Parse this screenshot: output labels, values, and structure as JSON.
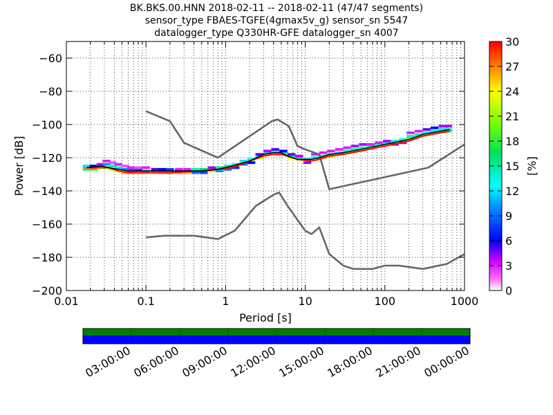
{
  "title_lines": [
    "BK.BKS.00.HNN   2018-02-11 -- 2018-02-11  (47/47 segments)",
    "sensor_type FBAES-TGFE(4gmax5v_g) sensor_sn 5547",
    "datalogger_type Q330HR-GFE datalogger_sn 4007"
  ],
  "colors": {
    "model_curve": "#666666",
    "mean_curve": "#000000",
    "mode_curve": "#ff0000",
    "bar_top": "#008000",
    "bar_bottom": "#0000ff"
  },
  "chart_data": [
    {
      "type": "heatmap",
      "xlabel": "Period [s]",
      "ylabel": "Power [dB]",
      "x_scale": "log",
      "xlim": [
        0.01,
        1000
      ],
      "ylim": [
        -200,
        -50
      ],
      "x_ticks": [
        0.01,
        0.1,
        1,
        10,
        100,
        1000
      ],
      "x_tick_labels": [
        "0.01",
        "0.1",
        "1",
        "10",
        "100",
        "1000"
      ],
      "y_ticks": [
        -200,
        -180,
        -160,
        -140,
        -120,
        -100,
        -80,
        -60
      ],
      "y_tick_labels": [
        "−200",
        "−180",
        "−160",
        "−140",
        "−120",
        "−100",
        "−80",
        "−60"
      ],
      "grid": "dotted",
      "colorbar": {
        "label": "[%]",
        "range": [
          0,
          30
        ],
        "ticks": [
          0,
          3,
          6,
          9,
          12,
          15,
          18,
          21,
          24,
          27,
          30
        ],
        "tick_labels": [
          "0",
          "3",
          "6",
          "9",
          "12",
          "15",
          "18",
          "21",
          "24",
          "27",
          "30"
        ]
      },
      "series": [
        {
          "style": "model-upper",
          "points": [
            [
              0.1,
              -92
            ],
            [
              0.2,
              -98
            ],
            [
              0.3,
              -111
            ],
            [
              0.8,
              -120
            ],
            [
              3.8,
              -98
            ],
            [
              4.5,
              -97
            ],
            [
              6.2,
              -101
            ],
            [
              8,
              -113
            ],
            [
              10,
              -115
            ],
            [
              15,
              -118
            ],
            [
              20,
              -139
            ],
            [
              350,
              -126
            ],
            [
              1000,
              -112
            ]
          ]
        },
        {
          "style": "model-lower",
          "points": [
            [
              0.1,
              -168
            ],
            [
              0.17,
              -167
            ],
            [
              0.4,
              -167
            ],
            [
              0.8,
              -169
            ],
            [
              1.3,
              -164
            ],
            [
              2.4,
              -149
            ],
            [
              4.1,
              -142
            ],
            [
              4.7,
              -141
            ],
            [
              6,
              -149
            ],
            [
              10,
              -164
            ],
            [
              12,
              -166
            ],
            [
              15,
              -162
            ],
            [
              20,
              -178
            ],
            [
              30,
              -185
            ],
            [
              40,
              -187
            ],
            [
              70,
              -187
            ],
            [
              100,
              -185
            ],
            [
              150,
              -185
            ],
            [
              300,
              -187
            ],
            [
              600,
              -184
            ],
            [
              1000,
              -178
            ]
          ]
        },
        {
          "style": "mode",
          "points": [
            [
              0.018,
              -126
            ],
            [
              0.028,
              -126
            ],
            [
              0.034,
              -126
            ],
            [
              0.045,
              -128
            ],
            [
              0.06,
              -129
            ],
            [
              0.1,
              -129
            ],
            [
              0.2,
              -129
            ],
            [
              0.5,
              -128
            ],
            [
              0.8,
              -127
            ],
            [
              1.2,
              -126
            ],
            [
              2,
              -122
            ],
            [
              3,
              -119
            ],
            [
              4,
              -118
            ],
            [
              5,
              -118
            ],
            [
              6,
              -119
            ],
            [
              8,
              -121
            ],
            [
              12,
              -122
            ],
            [
              15,
              -121
            ],
            [
              20,
              -119
            ],
            [
              30,
              -118
            ],
            [
              50,
              -116
            ],
            [
              100,
              -113
            ],
            [
              200,
              -110
            ],
            [
              300,
              -107
            ],
            [
              500,
              -105
            ],
            [
              650,
              -104
            ]
          ]
        },
        {
          "style": "mean",
          "points": [
            [
              0.018,
              -126
            ],
            [
              0.028,
              -125
            ],
            [
              0.034,
              -126
            ],
            [
              0.045,
              -127
            ],
            [
              0.06,
              -128
            ],
            [
              0.1,
              -128
            ],
            [
              0.2,
              -128
            ],
            [
              0.5,
              -128
            ],
            [
              0.8,
              -127
            ],
            [
              1.2,
              -125
            ],
            [
              2,
              -122
            ],
            [
              3,
              -118
            ],
            [
              4,
              -117
            ],
            [
              5,
              -117
            ],
            [
              6,
              -119
            ],
            [
              8,
              -121
            ],
            [
              12,
              -121
            ],
            [
              15,
              -120
            ],
            [
              20,
              -118
            ],
            [
              30,
              -117
            ],
            [
              50,
              -115
            ],
            [
              100,
              -112
            ],
            [
              200,
              -109
            ],
            [
              300,
              -106
            ],
            [
              500,
              -104
            ],
            [
              650,
              -103
            ]
          ]
        }
      ],
      "density_cells": [
        [
          0.018,
          -127,
          15
        ],
        [
          0.018,
          -126,
          27
        ],
        [
          0.018,
          -125,
          12
        ],
        [
          0.022,
          -127,
          18
        ],
        [
          0.022,
          -126,
          28
        ],
        [
          0.022,
          -125,
          6
        ],
        [
          0.027,
          -126,
          25
        ],
        [
          0.027,
          -125,
          12
        ],
        [
          0.027,
          -124,
          4
        ],
        [
          0.032,
          -126,
          20
        ],
        [
          0.032,
          -124,
          10
        ],
        [
          0.032,
          -122,
          3
        ],
        [
          0.038,
          -127,
          22
        ],
        [
          0.038,
          -125,
          14
        ],
        [
          0.038,
          -123,
          2
        ],
        [
          0.045,
          -128,
          24
        ],
        [
          0.045,
          -126,
          12
        ],
        [
          0.045,
          -124,
          3
        ],
        [
          0.055,
          -129,
          26
        ],
        [
          0.055,
          -127,
          10
        ],
        [
          0.055,
          -125,
          2
        ],
        [
          0.065,
          -129,
          27
        ],
        [
          0.065,
          -127,
          9
        ],
        [
          0.065,
          -126,
          3
        ],
        [
          0.08,
          -129,
          26
        ],
        [
          0.08,
          -127,
          8
        ],
        [
          0.08,
          -126,
          2
        ],
        [
          0.1,
          -129,
          27
        ],
        [
          0.1,
          -128,
          12
        ],
        [
          0.1,
          -126,
          3
        ],
        [
          0.13,
          -129,
          26
        ],
        [
          0.13,
          -128,
          13
        ],
        [
          0.13,
          -127,
          5
        ],
        [
          0.16,
          -129,
          27
        ],
        [
          0.16,
          -128,
          14
        ],
        [
          0.16,
          -127,
          6
        ],
        [
          0.2,
          -129,
          28
        ],
        [
          0.2,
          -128,
          18
        ],
        [
          0.2,
          -127,
          8
        ],
        [
          0.26,
          -129,
          27
        ],
        [
          0.26,
          -128,
          17
        ],
        [
          0.26,
          -127,
          3
        ],
        [
          0.33,
          -129,
          26
        ],
        [
          0.33,
          -128,
          20
        ],
        [
          0.33,
          -127,
          3
        ],
        [
          0.42,
          -128,
          27
        ],
        [
          0.42,
          -127,
          14
        ],
        [
          0.42,
          -129,
          9
        ],
        [
          0.53,
          -128,
          26
        ],
        [
          0.53,
          -127,
          16
        ],
        [
          0.53,
          -129,
          8
        ],
        [
          0.67,
          -128,
          25
        ],
        [
          0.67,
          -127,
          18
        ],
        [
          0.67,
          -126,
          4
        ],
        [
          0.84,
          -127,
          26
        ],
        [
          0.84,
          -126,
          15
        ],
        [
          0.84,
          -128,
          10
        ],
        [
          1.06,
          -126,
          26
        ],
        [
          1.06,
          -125,
          14
        ],
        [
          1.06,
          -127,
          9
        ],
        [
          1.33,
          -125,
          25
        ],
        [
          1.33,
          -124,
          13
        ],
        [
          1.33,
          -126,
          7
        ],
        [
          1.68,
          -123,
          24
        ],
        [
          1.68,
          -122,
          12
        ],
        [
          1.68,
          -124,
          9
        ],
        [
          2.1,
          -122,
          24
        ],
        [
          2.1,
          -121,
          13
        ],
        [
          2.1,
          -123,
          6
        ],
        [
          2.66,
          -120,
          22
        ],
        [
          2.66,
          -119,
          12
        ],
        [
          2.66,
          -118,
          5
        ],
        [
          3.35,
          -118,
          22
        ],
        [
          3.35,
          -117,
          14
        ],
        [
          3.35,
          -116,
          4
        ],
        [
          4.2,
          -118,
          22
        ],
        [
          4.2,
          -116,
          12
        ],
        [
          4.2,
          -115,
          5
        ],
        [
          5.3,
          -118,
          22
        ],
        [
          5.3,
          -117,
          14
        ],
        [
          5.3,
          -116,
          6
        ],
        [
          6.7,
          -120,
          23
        ],
        [
          6.7,
          -119,
          14
        ],
        [
          6.7,
          -118,
          5
        ],
        [
          8.4,
          -121,
          24
        ],
        [
          8.4,
          -120,
          14
        ],
        [
          8.4,
          -119,
          4
        ],
        [
          10.6,
          -122,
          25
        ],
        [
          10.6,
          -121,
          13
        ],
        [
          10.6,
          -123,
          4
        ],
        [
          13.3,
          -121,
          24
        ],
        [
          13.3,
          -120,
          12
        ],
        [
          13.3,
          -118,
          3
        ],
        [
          16.8,
          -120,
          22
        ],
        [
          16.8,
          -119,
          13
        ],
        [
          16.8,
          -117,
          3
        ],
        [
          21,
          -119,
          22
        ],
        [
          21,
          -118,
          13
        ],
        [
          21,
          -116,
          3
        ],
        [
          26.6,
          -118,
          22
        ],
        [
          26.6,
          -117,
          12
        ],
        [
          26.6,
          -115,
          3
        ],
        [
          33.5,
          -117,
          22
        ],
        [
          33.5,
          -116,
          14
        ],
        [
          33.5,
          -114,
          3
        ],
        [
          42,
          -116,
          22
        ],
        [
          42,
          -115,
          15
        ],
        [
          42,
          -113,
          4
        ],
        [
          53,
          -115,
          22
        ],
        [
          53,
          -114,
          14
        ],
        [
          53,
          -112,
          4
        ],
        [
          67,
          -114,
          23
        ],
        [
          67,
          -113,
          14
        ],
        [
          67,
          -112,
          3
        ],
        [
          84,
          -113,
          22
        ],
        [
          84,
          -112,
          13
        ],
        [
          84,
          -111,
          3
        ],
        [
          106,
          -112,
          22
        ],
        [
          106,
          -111,
          14
        ],
        [
          106,
          -110,
          4
        ],
        [
          133,
          -111,
          22
        ],
        [
          133,
          -110,
          13
        ],
        [
          133,
          -112,
          4
        ],
        [
          168,
          -110,
          22
        ],
        [
          168,
          -109,
          13
        ],
        [
          168,
          -111,
          4
        ],
        [
          210,
          -108,
          20
        ],
        [
          210,
          -107,
          14
        ],
        [
          210,
          -105,
          3
        ],
        [
          266,
          -107,
          20
        ],
        [
          266,
          -106,
          14
        ],
        [
          266,
          -104,
          3
        ],
        [
          335,
          -106,
          20
        ],
        [
          335,
          -105,
          12
        ],
        [
          335,
          -103,
          5
        ],
        [
          420,
          -105,
          18
        ],
        [
          420,
          -104,
          12
        ],
        [
          420,
          -102,
          6
        ],
        [
          530,
          -104,
          18
        ],
        [
          530,
          -103,
          12
        ],
        [
          530,
          -101,
          4
        ],
        [
          620,
          -104,
          18
        ],
        [
          620,
          -103,
          12
        ],
        [
          620,
          -101,
          4
        ]
      ]
    },
    {
      "type": "bar",
      "x_tick_labels": [
        "03:00:00",
        "06:00:00",
        "09:00:00",
        "12:00:00",
        "15:00:00",
        "18:00:00",
        "21:00:00",
        "00:00:00"
      ],
      "series_colors": [
        "#008000",
        "#0000ff"
      ]
    }
  ]
}
